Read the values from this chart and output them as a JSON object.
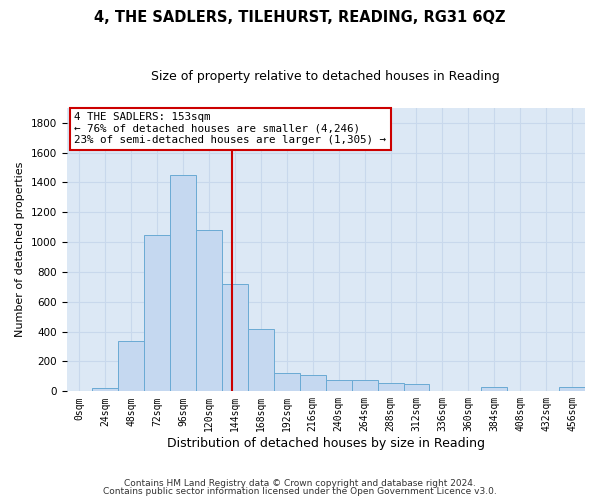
{
  "title": "4, THE SADLERS, TILEHURST, READING, RG31 6QZ",
  "subtitle": "Size of property relative to detached houses in Reading",
  "xlabel": "Distribution of detached houses by size in Reading",
  "ylabel": "Number of detached properties",
  "footnote1": "Contains HM Land Registry data © Crown copyright and database right 2024.",
  "footnote2": "Contains public sector information licensed under the Open Government Licence v3.0.",
  "bin_edges": [
    0,
    24,
    48,
    72,
    96,
    120,
    144,
    168,
    192,
    216,
    240,
    264,
    288,
    312,
    336,
    360,
    384,
    408,
    432,
    456,
    480
  ],
  "bin_counts": [
    5,
    25,
    340,
    1050,
    1450,
    1080,
    720,
    415,
    120,
    110,
    75,
    75,
    55,
    50,
    0,
    0,
    30,
    0,
    0,
    28,
    0
  ],
  "property_size": 153,
  "annotation_line1": "4 THE SADLERS: 153sqm",
  "annotation_line2": "← 76% of detached houses are smaller (4,246)",
  "annotation_line3": "23% of semi-detached houses are larger (1,305) →",
  "bar_color": "#c5d8f0",
  "bar_edge_color": "#6aaad4",
  "vline_color": "#cc0000",
  "annotation_box_facecolor": "#ffffff",
  "annotation_box_edgecolor": "#cc0000",
  "grid_color": "#c8d8ec",
  "plot_bg_color": "#dce8f5",
  "fig_bg_color": "#ffffff",
  "ylim": [
    0,
    1900
  ],
  "yticks": [
    0,
    200,
    400,
    600,
    800,
    1000,
    1200,
    1400,
    1600,
    1800
  ],
  "title_fontsize": 10.5,
  "subtitle_fontsize": 9,
  "ylabel_fontsize": 8,
  "xlabel_fontsize": 9,
  "tick_fontsize": 7,
  "annotation_fontsize": 7.8,
  "footnote_fontsize": 6.5
}
